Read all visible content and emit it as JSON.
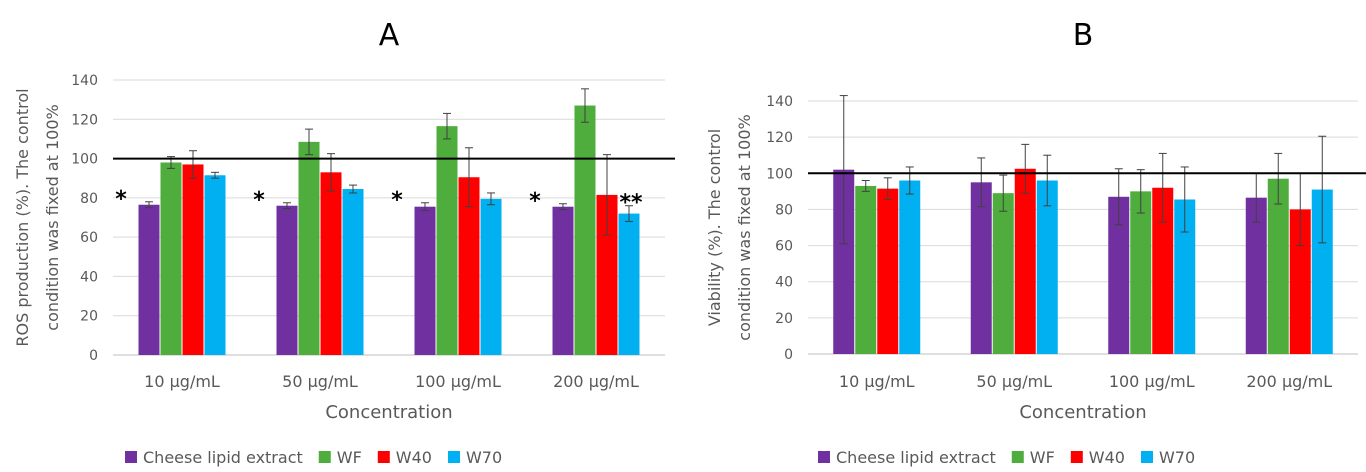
{
  "chart_data": [
    {
      "panel_label": "A",
      "type": "bar",
      "categories": [
        "10 µg/mL",
        "50 µg/mL",
        "100 µg/mL",
        "200 µg/mL"
      ],
      "series": [
        {
          "name": "Cheese lipid extract",
          "color": "#7030a0",
          "values": [
            76.5,
            76,
            75.5,
            75.5
          ],
          "errors": [
            1.5,
            1.5,
            2,
            1.5
          ]
        },
        {
          "name": "WF",
          "color": "#4ead3d",
          "values": [
            98,
            108.5,
            116.5,
            127
          ],
          "errors": [
            3,
            6.5,
            6.5,
            8.5
          ]
        },
        {
          "name": "W40",
          "color": "#ff0000",
          "values": [
            97,
            93,
            90.5,
            81.5
          ],
          "errors": [
            7,
            9.5,
            15,
            20.5
          ]
        },
        {
          "name": "W70",
          "color": "#00b0f0",
          "values": [
            91.5,
            84.5,
            79.5,
            72
          ],
          "errors": [
            1.5,
            2,
            3,
            4
          ]
        }
      ],
      "annotations": [
        {
          "category_index": 0,
          "series_index": 0,
          "text": "*"
        },
        {
          "category_index": 1,
          "series_index": 0,
          "text": "*"
        },
        {
          "category_index": 2,
          "series_index": 0,
          "text": "*"
        },
        {
          "category_index": 3,
          "series_index": 0,
          "text": "*"
        },
        {
          "category_index": 3,
          "series_index": 3,
          "text": "**"
        }
      ],
      "reference_line": 100,
      "ylim": [
        0,
        140
      ],
      "yticks": [
        0,
        20,
        40,
        60,
        80,
        100,
        120,
        140
      ],
      "xlabel": "Concentration",
      "ylabel_lines": [
        "ROS production (%). The control",
        "condition was fixed at 100%"
      ],
      "grid": true,
      "legend_position": "bottom-left"
    },
    {
      "panel_label": "B",
      "type": "bar",
      "categories": [
        "10 µg/mL",
        "50 µg/mL",
        "100 µg/mL",
        "200 µg/mL"
      ],
      "series": [
        {
          "name": "Cheese lipid extract",
          "color": "#7030a0",
          "values": [
            102,
            95,
            87,
            86.5
          ],
          "errors": [
            41,
            13.5,
            15.5,
            13.5
          ]
        },
        {
          "name": "WF",
          "color": "#4ead3d",
          "values": [
            93,
            89,
            90,
            97
          ],
          "errors": [
            3,
            10,
            12,
            14
          ]
        },
        {
          "name": "W40",
          "color": "#ff0000",
          "values": [
            91.5,
            102.5,
            92,
            80
          ],
          "errors": [
            6,
            13.5,
            19,
            20
          ]
        },
        {
          "name": "W70",
          "color": "#00b0f0",
          "values": [
            96,
            96,
            85.5,
            91
          ],
          "errors": [
            7.5,
            14,
            18,
            29.5
          ]
        }
      ],
      "annotations": [],
      "reference_line": 100,
      "ylim": [
        0,
        140
      ],
      "yticks": [
        0,
        20,
        40,
        60,
        80,
        100,
        120,
        140
      ],
      "xlabel": "Concentration",
      "ylabel_lines": [
        "Viability (%). The control",
        "condition was fixed at 100%"
      ],
      "grid": true,
      "legend_position": "bottom-left"
    }
  ]
}
